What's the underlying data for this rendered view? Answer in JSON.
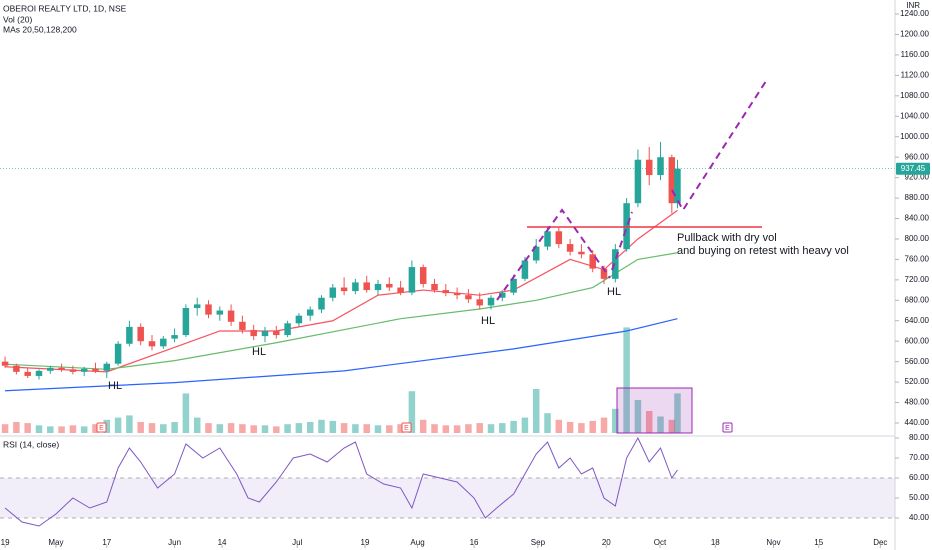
{
  "chart_data": {
    "type": "candlestick",
    "title": "OBEROI REALTY LTD, 1D, NSE",
    "volume_label": "Vol (20)",
    "ma_label": "MAs 20,50,128,200",
    "currency": "INR",
    "up_color": "#26a69a",
    "down_color": "#ef5350",
    "x": [
      0,
      2,
      4,
      6,
      8,
      10,
      12,
      14,
      16,
      18,
      20,
      22,
      24,
      26,
      28,
      30,
      32,
      34,
      36,
      38,
      40,
      42,
      44,
      46,
      48,
      50,
      52,
      54,
      56,
      58,
      60,
      62,
      64,
      66,
      68,
      70,
      72,
      74,
      76,
      78,
      80,
      82,
      84,
      86,
      88,
      90,
      92,
      94,
      96,
      98,
      100,
      102,
      104,
      106,
      108,
      110,
      112,
      114,
      116,
      118,
      119
    ],
    "open": [
      560,
      552,
      540,
      532,
      542,
      548,
      545,
      540,
      546,
      542,
      556,
      595,
      628,
      600,
      590,
      605,
      612,
      665,
      672,
      652,
      660,
      638,
      622,
      610,
      620,
      612,
      635,
      650,
      662,
      685,
      705,
      698,
      715,
      700,
      712,
      705,
      695,
      745,
      712,
      700,
      694,
      690,
      682,
      670,
      685,
      695,
      722,
      758,
      785,
      815,
      790,
      775,
      770,
      742,
      722,
      780,
      870,
      955,
      925,
      960,
      870
    ],
    "high": [
      570,
      556,
      548,
      545,
      552,
      556,
      552,
      550,
      558,
      560,
      600,
      640,
      635,
      612,
      610,
      625,
      672,
      685,
      680,
      668,
      672,
      650,
      632,
      628,
      630,
      640,
      655,
      668,
      690,
      712,
      725,
      722,
      728,
      720,
      725,
      718,
      758,
      750,
      722,
      712,
      705,
      702,
      695,
      690,
      700,
      730,
      765,
      800,
      825,
      822,
      800,
      790,
      778,
      748,
      790,
      880,
      975,
      980,
      990,
      965,
      955
    ],
    "low": [
      548,
      535,
      528,
      525,
      536,
      540,
      535,
      532,
      538,
      528,
      552,
      590,
      592,
      582,
      585,
      598,
      608,
      650,
      645,
      640,
      630,
      615,
      602,
      598,
      605,
      608,
      628,
      640,
      655,
      678,
      690,
      692,
      695,
      690,
      698,
      690,
      690,
      705,
      695,
      688,
      682,
      675,
      662,
      662,
      678,
      690,
      718,
      752,
      778,
      782,
      768,
      762,
      735,
      712,
      715,
      775,
      862,
      905,
      915,
      850,
      860
    ],
    "close": [
      552,
      540,
      532,
      542,
      548,
      545,
      540,
      546,
      542,
      556,
      595,
      628,
      600,
      590,
      605,
      612,
      665,
      672,
      652,
      660,
      638,
      622,
      610,
      620,
      612,
      635,
      650,
      662,
      685,
      705,
      698,
      715,
      700,
      712,
      705,
      695,
      745,
      712,
      700,
      694,
      690,
      682,
      670,
      685,
      695,
      722,
      758,
      785,
      815,
      790,
      775,
      770,
      742,
      722,
      780,
      870,
      955,
      925,
      960,
      870,
      937.45
    ],
    "volume": [
      8,
      10,
      9,
      7,
      6,
      6,
      7,
      6,
      8,
      12,
      14,
      16,
      10,
      9,
      8,
      10,
      36,
      14,
      9,
      8,
      9,
      8,
      7,
      7,
      6,
      8,
      9,
      10,
      12,
      11,
      9,
      8,
      8,
      7,
      7,
      8,
      38,
      12,
      8,
      7,
      7,
      8,
      9,
      8,
      9,
      11,
      14,
      40,
      18,
      12,
      10,
      9,
      11,
      14,
      22,
      96,
      30,
      20,
      15,
      12,
      36
    ],
    "volume_ylim": [
      0,
      100
    ],
    "last_price": 937.45,
    "xlim": [
      -0.9,
      157.5
    ],
    "ylim": [
      416.5,
      1267.5
    ],
    "yticks": [
      {
        "value": 1240,
        "label": "1240.00"
      },
      {
        "value": 1200,
        "label": "1200.00"
      },
      {
        "value": 1160,
        "label": "1160.00"
      },
      {
        "value": 1120,
        "label": "1120.00"
      },
      {
        "value": 1080,
        "label": "1080.00"
      },
      {
        "value": 1040,
        "label": "1040.00"
      },
      {
        "value": 1000,
        "label": "1000.00"
      },
      {
        "value": 960,
        "label": "960.00"
      },
      {
        "value": 920,
        "label": "920.00"
      },
      {
        "value": 880,
        "label": "880.00"
      },
      {
        "value": 840,
        "label": "840.00"
      },
      {
        "value": 800,
        "label": "800.00"
      },
      {
        "value": 760,
        "label": "760.00"
      },
      {
        "value": 720,
        "label": "720.00"
      },
      {
        "value": 680,
        "label": "680.00"
      },
      {
        "value": 640,
        "label": "640.00"
      },
      {
        "value": 600,
        "label": "600.00"
      },
      {
        "value": 560,
        "label": "560.00"
      },
      {
        "value": 520,
        "label": "520.00"
      },
      {
        "value": 480,
        "label": "480.00"
      },
      {
        "value": 440,
        "label": "440.00"
      }
    ],
    "xticks": [
      {
        "value": 0,
        "label": "19"
      },
      {
        "value": 9,
        "label": "May"
      },
      {
        "value": 18,
        "label": "17"
      },
      {
        "value": 30,
        "label": "Jun"
      },
      {
        "value": 38.4,
        "label": "14"
      },
      {
        "value": 51.7,
        "label": "Jul"
      },
      {
        "value": 63.7,
        "label": "19"
      },
      {
        "value": 73,
        "label": "Aug"
      },
      {
        "value": 83,
        "label": "16"
      },
      {
        "value": 94.3,
        "label": "Sep"
      },
      {
        "value": 106.4,
        "label": "20"
      },
      {
        "value": 115.9,
        "label": "Oct"
      },
      {
        "value": 125.7,
        "label": "18"
      },
      {
        "value": 136,
        "label": "Nov"
      },
      {
        "value": 144,
        "label": "15"
      },
      {
        "value": 154.9,
        "label": "Dec"
      }
    ],
    "ma_series": [
      {
        "color": "#f7525f",
        "x": [
          0,
          18,
          28,
          38,
          48,
          58,
          66,
          74,
          84,
          90,
          100,
          106,
          112,
          119
        ],
        "values": [
          550,
          540,
          580,
          620,
          620,
          640,
          690,
          700,
          690,
          700,
          760,
          740,
          800,
          856
        ]
      },
      {
        "color": "#66bb6a",
        "x": [
          0,
          18,
          30,
          48,
          70,
          84,
          94,
          104,
          112,
          119
        ],
        "values": [
          555,
          545,
          562,
          597,
          644,
          663,
          680,
          705,
          760,
          773
        ]
      },
      {
        "color": "#2962ff",
        "x": [
          0,
          30,
          60,
          90,
          110,
          119
        ],
        "values": [
          503,
          519,
          542,
          585,
          620,
          644
        ]
      }
    ],
    "rsi": {
      "label": "RSI (14, close)",
      "color": "#7e57c2",
      "band": [
        40,
        60
      ],
      "ylim": [
        26.5,
        81
      ],
      "yticks": [
        {
          "value": 80,
          "label": "80.00"
        },
        {
          "value": 70,
          "label": "70.00"
        },
        {
          "value": 60,
          "label": "60.00"
        },
        {
          "value": 50,
          "label": "50.00"
        },
        {
          "value": 40,
          "label": "40.00"
        }
      ],
      "x": [
        0,
        3,
        6,
        9,
        12,
        15,
        18,
        20,
        22,
        24,
        27,
        30,
        32,
        35,
        38,
        41,
        43,
        45,
        48,
        51,
        54,
        57,
        60,
        62,
        64,
        67,
        70,
        72,
        74,
        77,
        80,
        83,
        85,
        87,
        90,
        92,
        94,
        96,
        98,
        100,
        102,
        104,
        106,
        108,
        110,
        112,
        114,
        116,
        118,
        119
      ],
      "values": [
        45,
        38,
        36,
        42,
        50,
        45,
        48,
        65,
        75,
        68,
        55,
        62,
        77,
        70,
        75,
        62,
        50,
        48,
        58,
        70,
        72,
        68,
        75,
        78,
        62,
        57,
        55,
        45,
        62,
        60,
        58,
        50,
        40,
        45,
        52,
        62,
        72,
        78,
        65,
        70,
        62,
        65,
        50,
        46,
        70,
        80,
        68,
        75,
        60,
        64
      ]
    },
    "annotations": [
      "HL",
      "HL",
      "HL",
      "HL",
      "Pullback with dry vol",
      "and buying on retest with heavy vol"
    ],
    "event_markers": [
      "E",
      "E",
      "E"
    ]
  }
}
